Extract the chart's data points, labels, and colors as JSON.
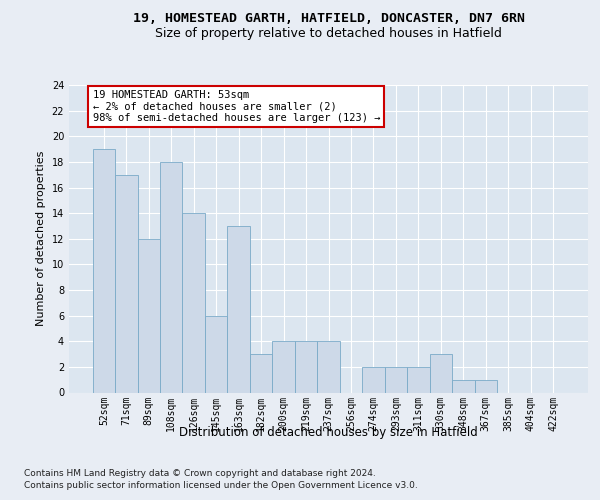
{
  "title1": "19, HOMESTEAD GARTH, HATFIELD, DONCASTER, DN7 6RN",
  "title2": "Size of property relative to detached houses in Hatfield",
  "xlabel": "Distribution of detached houses by size in Hatfield",
  "ylabel": "Number of detached properties",
  "bar_labels": [
    "52sqm",
    "71sqm",
    "89sqm",
    "108sqm",
    "126sqm",
    "145sqm",
    "163sqm",
    "182sqm",
    "200sqm",
    "219sqm",
    "237sqm",
    "256sqm",
    "274sqm",
    "293sqm",
    "311sqm",
    "330sqm",
    "348sqm",
    "367sqm",
    "385sqm",
    "404sqm",
    "422sqm"
  ],
  "bar_values": [
    19,
    17,
    12,
    18,
    14,
    6,
    13,
    3,
    4,
    4,
    4,
    0,
    2,
    2,
    2,
    3,
    1,
    1,
    0,
    0,
    0
  ],
  "bar_color": "#cdd9e8",
  "bar_edge_color": "#7aaac8",
  "bg_color": "#e8edf4",
  "plot_bg_color": "#dce6f0",
  "grid_color": "#ffffff",
  "annotation_line1": "19 HOMESTEAD GARTH: 53sqm",
  "annotation_line2": "← 2% of detached houses are smaller (2)",
  "annotation_line3": "98% of semi-detached houses are larger (123) →",
  "annotation_box_color": "#ffffff",
  "annotation_box_edge_color": "#cc0000",
  "ylim": [
    0,
    24
  ],
  "yticks": [
    0,
    2,
    4,
    6,
    8,
    10,
    12,
    14,
    16,
    18,
    20,
    22,
    24
  ],
  "footer1": "Contains HM Land Registry data © Crown copyright and database right 2024.",
  "footer2": "Contains public sector information licensed under the Open Government Licence v3.0.",
  "title1_fontsize": 9.5,
  "title2_fontsize": 9,
  "xlabel_fontsize": 8.5,
  "ylabel_fontsize": 8,
  "tick_fontsize": 7,
  "annotation_fontsize": 7.5,
  "footer_fontsize": 6.5
}
